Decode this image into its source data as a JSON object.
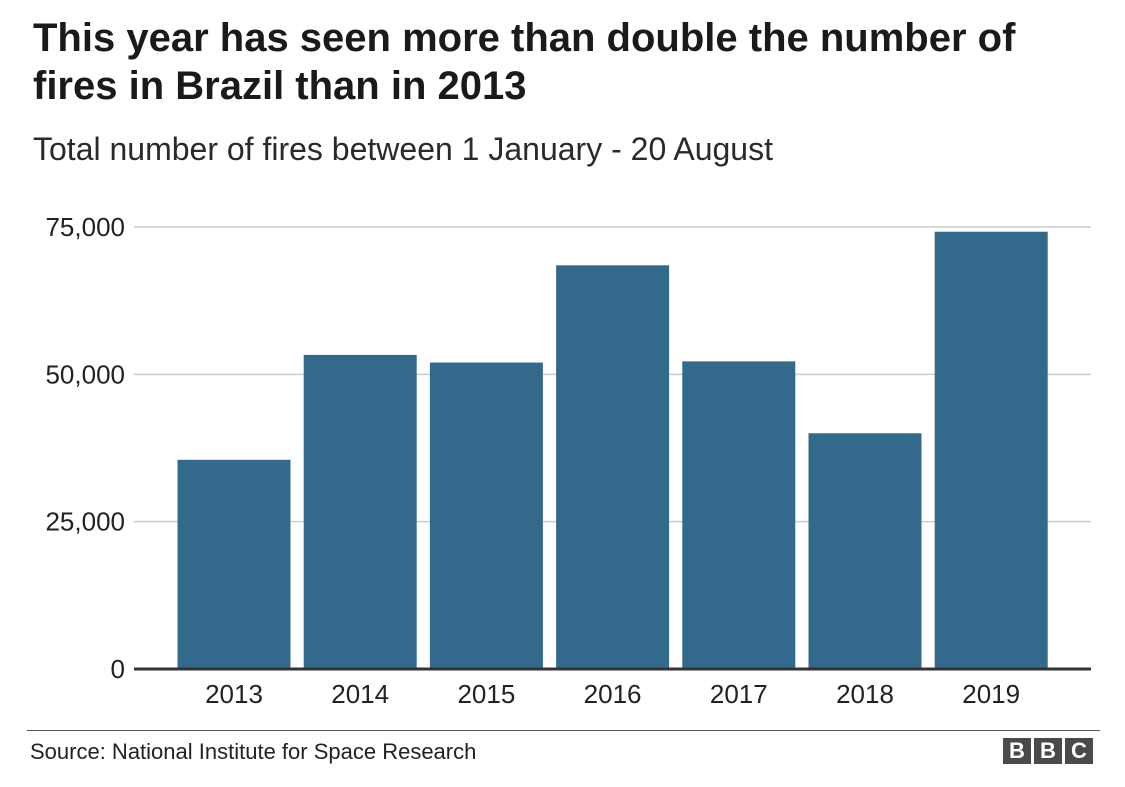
{
  "title": "This year has seen more than double the number of fires in Brazil than in 2013",
  "subtitle": "Total number of fires between 1 January - 20 August",
  "source": "Source: National Institute for Space Research",
  "logo": [
    "B",
    "B",
    "C"
  ],
  "colors": {
    "bar": "#336a8c",
    "grid": "#cccccc",
    "axis": "#333333",
    "text": "#222222"
  },
  "chart_data": {
    "type": "bar",
    "categories": [
      "2013",
      "2014",
      "2015",
      "2016",
      "2017",
      "2018",
      "2019"
    ],
    "values": [
      35500,
      53300,
      52000,
      68500,
      52200,
      40000,
      74200
    ],
    "ylim": [
      0,
      75000
    ],
    "yticks": [
      0,
      25000,
      50000,
      75000
    ],
    "ytick_labels": [
      "0",
      "25,000",
      "50,000",
      "75,000"
    ],
    "grid": true,
    "legend": "none"
  }
}
